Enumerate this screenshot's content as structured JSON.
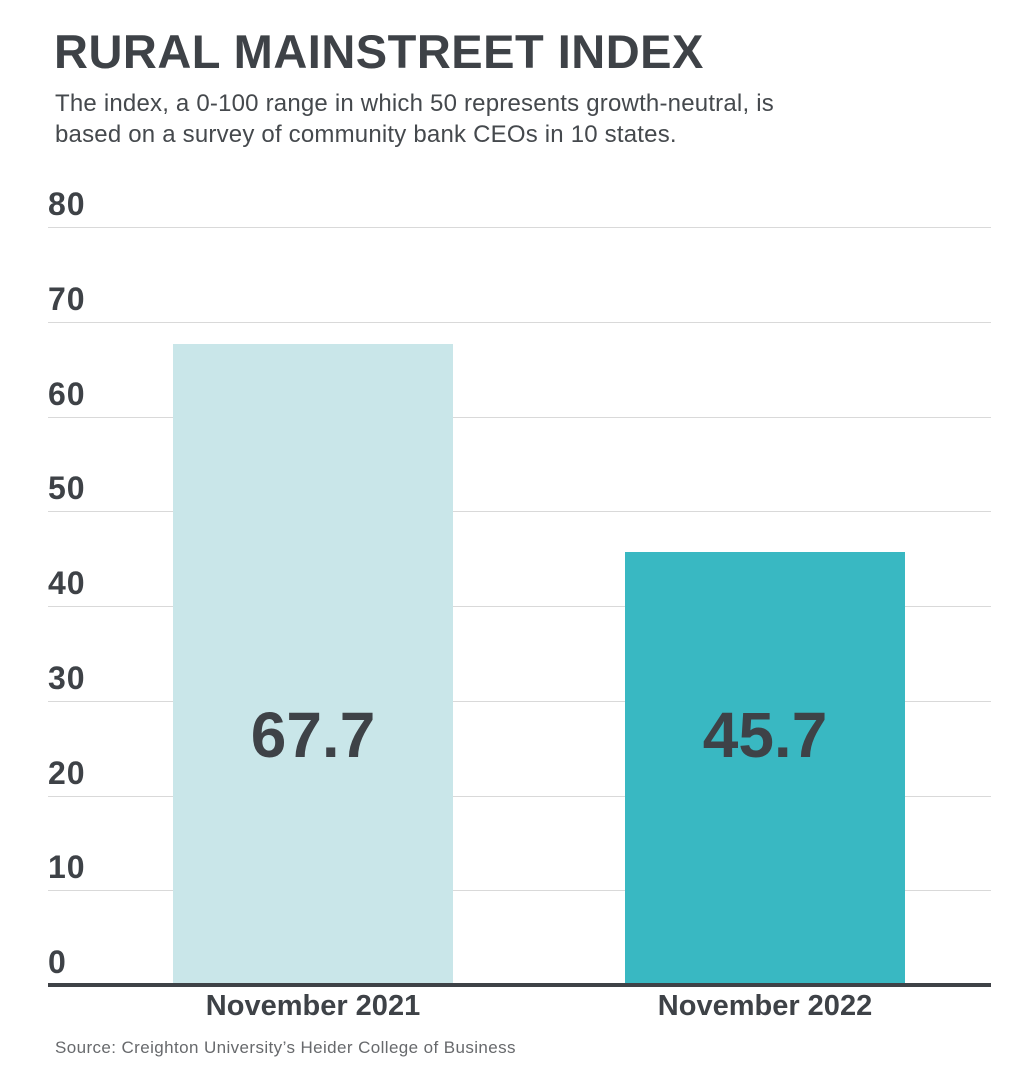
{
  "header": {
    "title": "RURAL MAINSTREET INDEX",
    "subtitle_lines": [
      "The index, a 0-100 range in which 50 represents growth-neutral, is",
      "based on a survey of community bank CEOs in 10 states."
    ]
  },
  "footer": {
    "source": "Source: Creighton University’s Heider College of Business"
  },
  "colors": {
    "text_dark": "#3e4247",
    "subtitle_text": "#45494d",
    "source_text": "#67696c",
    "gridline": "#d9d9d9",
    "axis_baseline": "#3e4247",
    "bar_2021": "#c9e6e9",
    "bar_2022": "#39b8c2"
  },
  "chart_data": {
    "type": "bar",
    "title": "RURAL MAINSTREET INDEX",
    "categories": [
      "November 2021",
      "November 2022"
    ],
    "values": [
      67.7,
      45.7
    ],
    "value_labels": [
      "67.7",
      "45.7"
    ],
    "bar_colors": [
      "#c9e6e9",
      "#39b8c2"
    ],
    "xlabel": "",
    "ylabel": "",
    "ylim": [
      0,
      80
    ],
    "yticks": [
      0,
      10,
      20,
      30,
      40,
      50,
      60,
      70,
      80
    ],
    "grid": "horizontal",
    "legend": "none"
  }
}
